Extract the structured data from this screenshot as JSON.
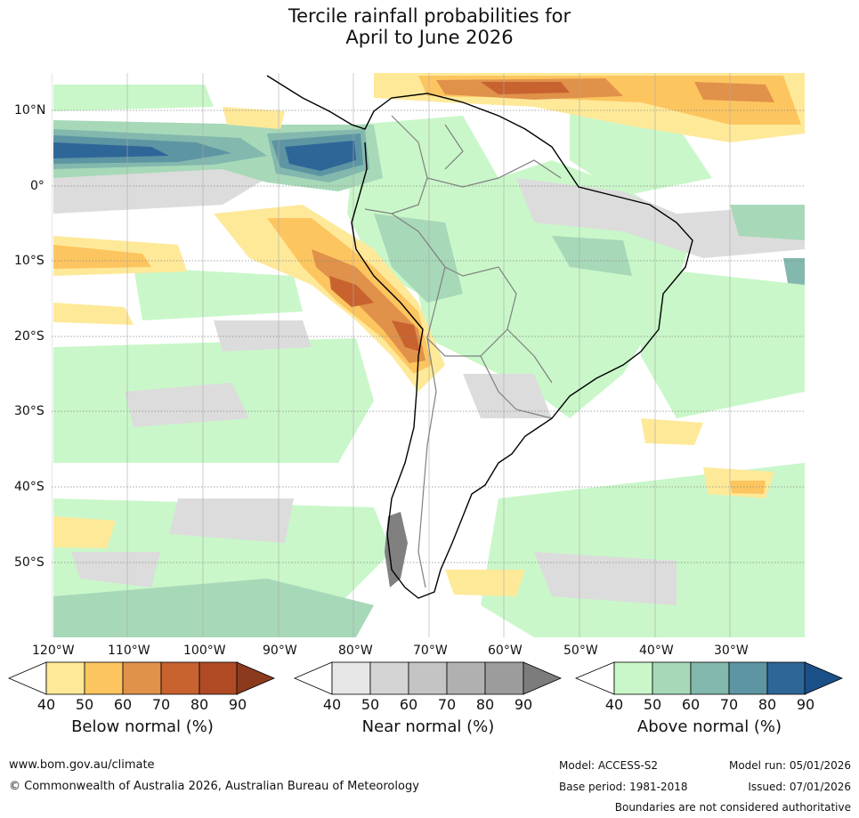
{
  "title": {
    "line1": "Tercile rainfall probabilities for",
    "line2": "April to June 2026"
  },
  "axes": {
    "lon_labels": [
      "120°W",
      "110°W",
      "100°W",
      "90°W",
      "80°W",
      "70°W",
      "60°W",
      "50°W",
      "40°W",
      "30°W"
    ],
    "lat_labels": [
      "10°N",
      "0°",
      "10°S",
      "20°S",
      "30°S",
      "40°S",
      "50°S"
    ]
  },
  "colorbars": [
    {
      "name": "below",
      "title": "Below normal (%)",
      "ticks": [
        "40",
        "50",
        "60",
        "70",
        "80",
        "90"
      ],
      "colors": [
        "#ffffff",
        "#fee999",
        "#fdc55f",
        "#e0914a",
        "#c8622f",
        "#b04a25",
        "#8b3a1e"
      ]
    },
    {
      "name": "near",
      "title": "Near normal (%)",
      "ticks": [
        "40",
        "50",
        "60",
        "70",
        "80",
        "90"
      ],
      "colors": [
        "#ffffff",
        "#e6e6e6",
        "#d4d4d4",
        "#c4c4c4",
        "#b0b0b0",
        "#9c9c9c",
        "#7c7c7c"
      ]
    },
    {
      "name": "above",
      "title": "Above normal (%)",
      "ticks": [
        "40",
        "50",
        "60",
        "70",
        "80",
        "90"
      ],
      "colors": [
        "#ffffff",
        "#c9f7c9",
        "#a7d8b8",
        "#82b8ad",
        "#5e95a3",
        "#2f6698",
        "#1b4f87"
      ]
    }
  ],
  "footer": {
    "website": "www.bom.gov.au/climate",
    "copyright": "© Commonwealth of Australia 2026, Australian Bureau of Meteorology",
    "model": "Model: ACCESS-S2",
    "model_run": "Model run: 05/01/2026",
    "base_period": "Base period: 1981-2018",
    "issued": "Issued: 07/01/2026",
    "disclaimer": "Boundaries are not considered authoritative"
  },
  "map_colors": {
    "ocean_bg": "#ffffff",
    "light_green": "#c9f7c9",
    "mid_green": "#a7d8b8",
    "teal": "#82b8ad",
    "deep_blue": "#2f6698",
    "yellow": "#fee999",
    "orange": "#fdc55f",
    "brown": "#c8622f",
    "grey": "#d8d8d8",
    "coast": "#000000",
    "border": "#808080"
  }
}
